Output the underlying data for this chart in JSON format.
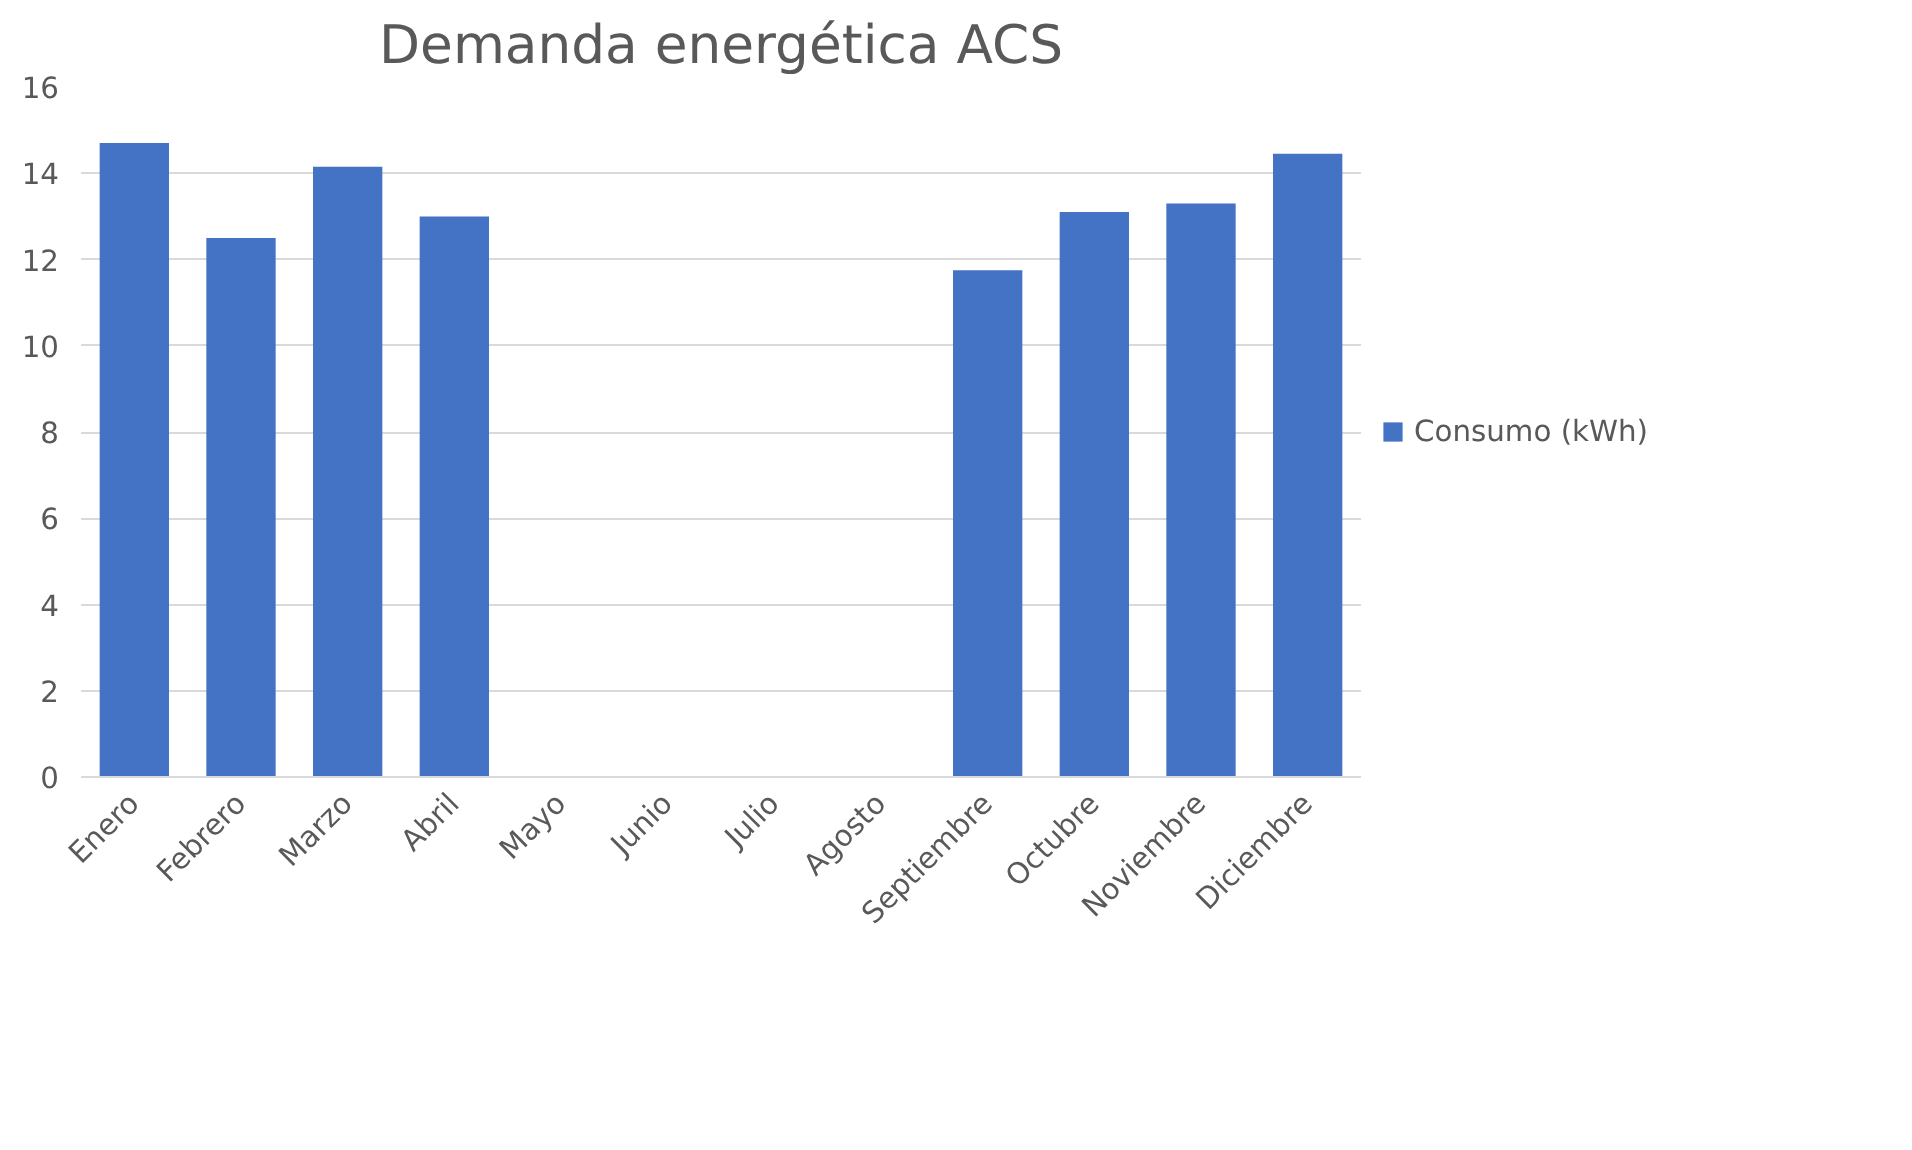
{
  "chart_data": {
    "type": "bar",
    "title": "Demanda energética ACS",
    "categories": [
      "Enero",
      "Febrero",
      "Marzo",
      "Abril",
      "Mayo",
      "Junio",
      "Julio",
      "Agosto",
      "Septiembre",
      "Octubre",
      "Noviembre",
      "Diciembre"
    ],
    "series": [
      {
        "name": "Consumo (kWh)",
        "color": "#4472c4",
        "values": [
          14.7,
          12.5,
          14.15,
          13.0,
          0,
          0,
          0,
          0,
          11.75,
          13.1,
          13.3,
          14.45
        ]
      }
    ],
    "ylim": [
      0,
      16
    ],
    "yticks": [
      0,
      2,
      4,
      6,
      8,
      10,
      12,
      14,
      16
    ],
    "grid": "y",
    "legend": "right"
  }
}
